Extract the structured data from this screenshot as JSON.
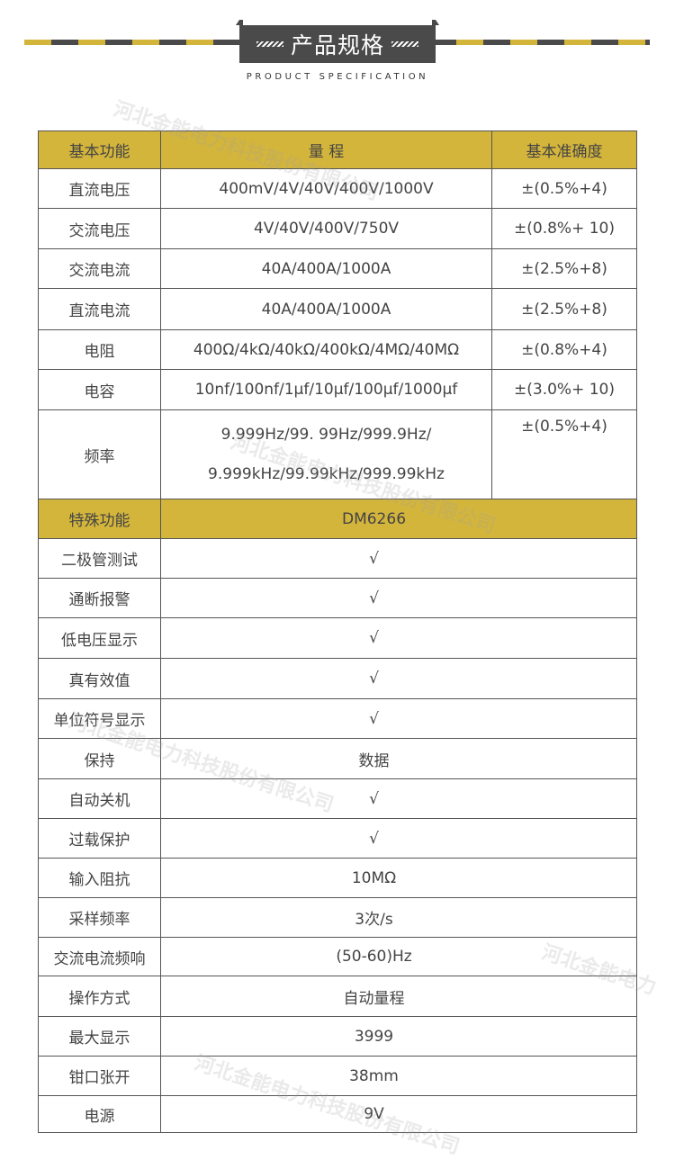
{
  "header": {
    "title": "产品规格",
    "subtitle": "PRODUCT SPECIFICATION"
  },
  "colors": {
    "accent": "#d4b53c",
    "dark": "#4a4a4a"
  },
  "watermark": "河北金能电力科技股份有限公司 http://www.jndl.com.cn",
  "basic": {
    "headers": [
      "基本功能",
      "量 程",
      "基本准确度"
    ],
    "rows": [
      [
        "直流电压",
        "400mV/4V/40V/400V/1000V",
        "±(0.5%+4)"
      ],
      [
        "交流电压",
        "4V/40V/400V/750V",
        "±(0.8%+ 10)"
      ],
      [
        "交流电流",
        "40A/400A/1000A",
        "±(2.5%+8)"
      ],
      [
        "直流电流",
        "40A/400A/1000A",
        "±(2.5%+8)"
      ],
      [
        "电阻",
        "400Ω/4kΩ/40kΩ/400kΩ/4MΩ/40MΩ",
        "±(0.8%+4)"
      ],
      [
        "电容",
        "10nf/100nf/1μf/10μf/100μf/1000μf",
        "±(3.0%+ 10)"
      ]
    ],
    "freq": {
      "label": "频率",
      "line1": "9.999Hz/99. 99Hz/999.9Hz/",
      "line2": "9.999kHz/99.99kHz/999.99kHz",
      "accuracy": "±(0.5%+4)"
    }
  },
  "special": {
    "headers": [
      "特殊功能",
      "DM6266"
    ],
    "rows": [
      [
        "二极管测试",
        "√"
      ],
      [
        "通断报警",
        "√"
      ],
      [
        "低电压显示",
        "√"
      ],
      [
        "真有效值",
        "√"
      ],
      [
        "单位符号显示",
        "√"
      ],
      [
        "保持",
        "数据"
      ],
      [
        "自动关机",
        "√"
      ],
      [
        "过载保护",
        "√"
      ],
      [
        "输入阻抗",
        "10MΩ"
      ],
      [
        "采样频率",
        "3次/s"
      ],
      [
        "交流电流频响",
        "(50-60)Hz"
      ],
      [
        "操作方式",
        "自动量程"
      ],
      [
        "最大显示",
        "3999"
      ],
      [
        "钳口张开",
        "38mm"
      ],
      [
        "电源",
        "9V"
      ]
    ]
  }
}
